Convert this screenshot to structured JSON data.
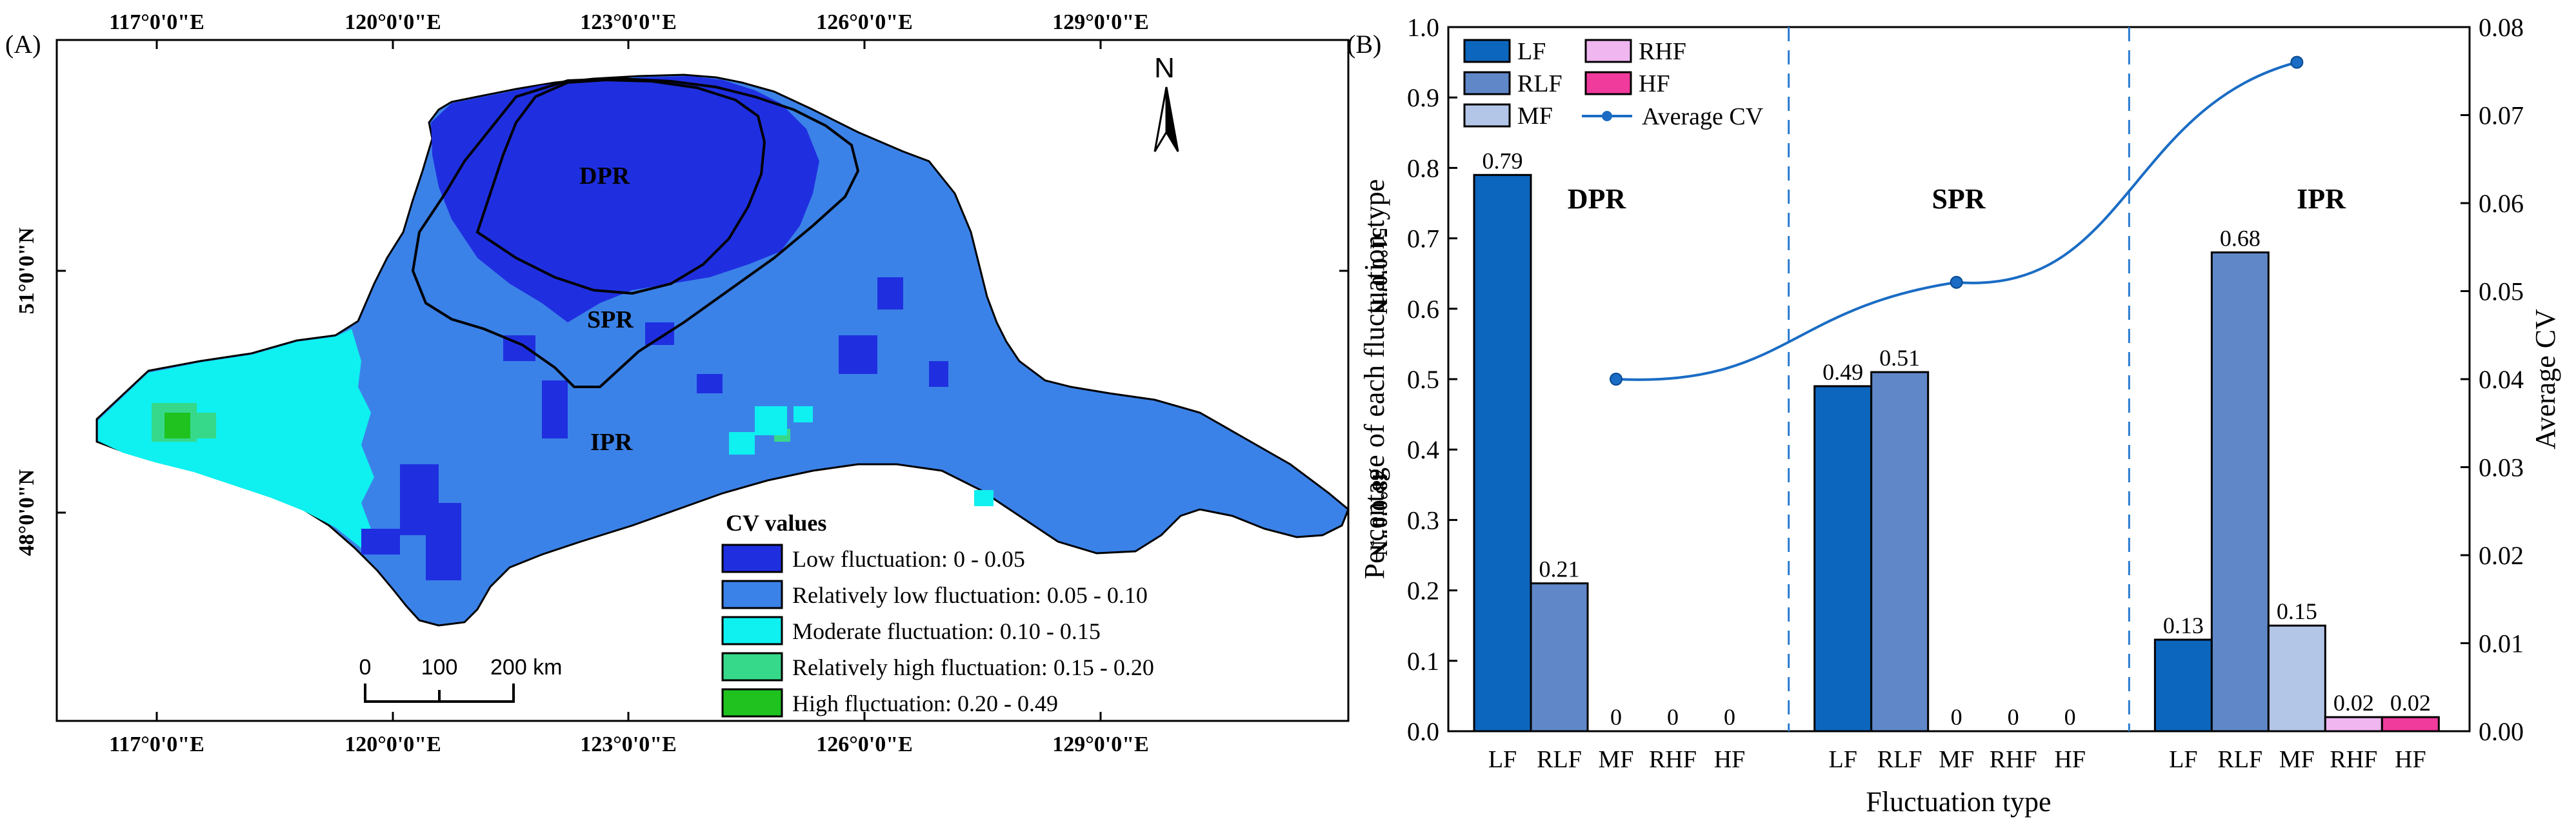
{
  "panel_a": {
    "label": "(A)",
    "lon_ticks": [
      "117°0'0\"E",
      "120°0'0\"E",
      "123°0'0\"E",
      "126°0'0\"E",
      "129°0'0\"E"
    ],
    "lat_ticks": [
      "51°0'0\"N",
      "48°0'0\"N"
    ],
    "north_label": "N",
    "regions": [
      "DPR",
      "SPR",
      "IPR"
    ],
    "legend": {
      "title": "CV values",
      "items": [
        {
          "label": "Low fluctuation: 0 - 0.05",
          "color": "#1f2fe0"
        },
        {
          "label": "Relatively low fluctuation: 0.05 - 0.10",
          "color": "#3b82e8"
        },
        {
          "label": "Moderate fluctuation: 0.10 - 0.15",
          "color": "#0ff0f0"
        },
        {
          "label": "Relatively high fluctuation: 0.15 - 0.20",
          "color": "#36d98a"
        },
        {
          "label": "High fluctuation: 0.20 - 0.49",
          "color": "#1fc21f"
        }
      ]
    },
    "scale_bar": {
      "labels": [
        "0",
        "100",
        "200 km"
      ]
    }
  },
  "panel_b": {
    "label": "(B)",
    "chart_data": {
      "type": "bar",
      "title": "",
      "xlabel": "Fluctuation type",
      "ylabel": "Percentage of each fluctuation type",
      "y2label": "Average CV",
      "ylim": [
        0,
        1.0
      ],
      "y2lim": [
        0,
        0.08
      ],
      "yticks": [
        0.0,
        0.1,
        0.2,
        0.3,
        0.4,
        0.5,
        0.6,
        0.7,
        0.8,
        0.9,
        1.0
      ],
      "y2ticks": [
        0.0,
        0.01,
        0.02,
        0.03,
        0.04,
        0.05,
        0.06,
        0.07,
        0.08
      ],
      "categories": [
        "LF",
        "RLF",
        "MF",
        "RHF",
        "HF"
      ],
      "colors": {
        "LF": "#0d66bd",
        "RLF": "#6088c8",
        "MF": "#b4c6e8",
        "RHF": "#f0b6f0",
        "HF": "#f03a9c"
      },
      "groups": [
        {
          "name": "DPR",
          "values": [
            0.79,
            0.21,
            0,
            0,
            0
          ],
          "labels": [
            "0.79",
            "0.21",
            "0",
            "0",
            "0"
          ]
        },
        {
          "name": "SPR",
          "values": [
            0.49,
            0.51,
            0,
            0,
            0
          ],
          "labels": [
            "0.49",
            "0.51",
            "0",
            "0",
            "0"
          ]
        },
        {
          "name": "IPR",
          "values": [
            0.13,
            0.68,
            0.15,
            0.02,
            0.02
          ],
          "labels": [
            "0.13",
            "0.68",
            "0.15",
            "0.02",
            "0.02"
          ]
        }
      ],
      "line_series": {
        "name": "Average CV",
        "values": [
          0.04,
          0.051,
          0.076
        ],
        "color": "#1a6cc4"
      },
      "legend": [
        "LF",
        "RLF",
        "MF",
        "RHF",
        "HF",
        "Average CV"
      ]
    }
  }
}
